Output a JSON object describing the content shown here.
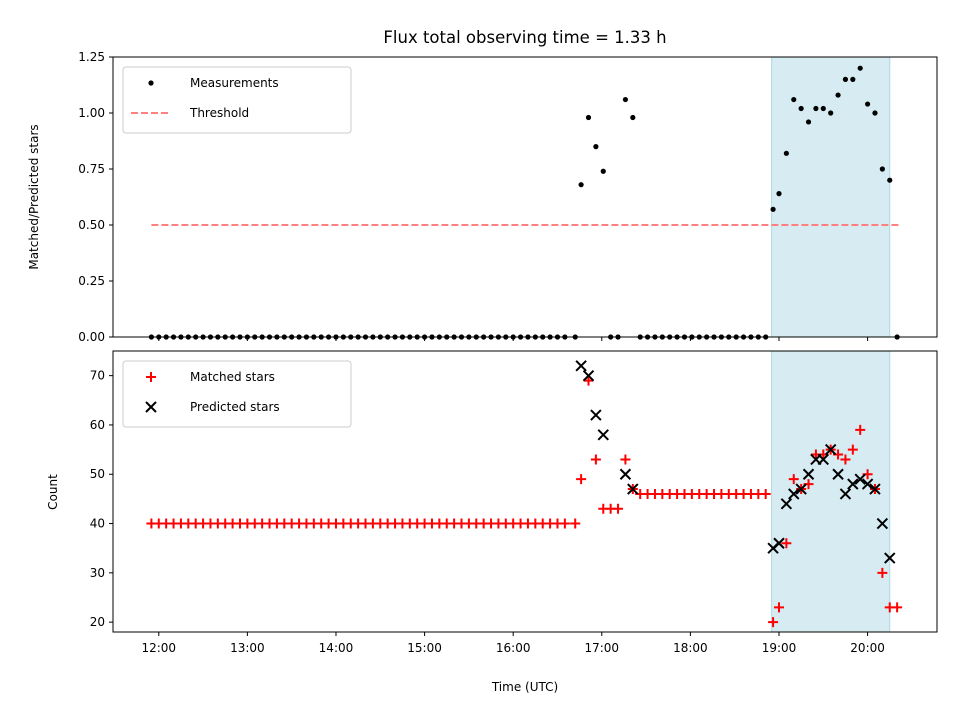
{
  "chart_data": [
    {
      "type": "scatter",
      "title": "Flux total observing time = 1.33 h",
      "ylabel": "Matched/Predicted stars",
      "xlabel": "",
      "ylim": [
        0,
        1.25
      ],
      "yticks": [
        "0.00",
        "0.25",
        "0.50",
        "0.75",
        "1.00",
        "1.25"
      ],
      "grid": false,
      "legend": "top-left",
      "shaded_interval": [
        "18:55",
        "20:15"
      ],
      "series": [
        {
          "name": "Measurements",
          "marker": "dot",
          "color": "#000000",
          "points": [
            [
              "11:55",
              0
            ],
            [
              "12:00",
              0
            ],
            [
              "12:05",
              0
            ],
            [
              "12:10",
              0
            ],
            [
              "12:15",
              0
            ],
            [
              "12:20",
              0
            ],
            [
              "12:25",
              0
            ],
            [
              "12:30",
              0
            ],
            [
              "12:35",
              0
            ],
            [
              "12:40",
              0
            ],
            [
              "12:45",
              0
            ],
            [
              "12:50",
              0
            ],
            [
              "12:55",
              0
            ],
            [
              "13:00",
              0
            ],
            [
              "13:05",
              0
            ],
            [
              "13:10",
              0
            ],
            [
              "13:15",
              0
            ],
            [
              "13:20",
              0
            ],
            [
              "13:25",
              0
            ],
            [
              "13:30",
              0
            ],
            [
              "13:35",
              0
            ],
            [
              "13:40",
              0
            ],
            [
              "13:45",
              0
            ],
            [
              "13:50",
              0
            ],
            [
              "13:55",
              0
            ],
            [
              "14:00",
              0
            ],
            [
              "14:05",
              0
            ],
            [
              "14:10",
              0
            ],
            [
              "14:15",
              0
            ],
            [
              "14:20",
              0
            ],
            [
              "14:25",
              0
            ],
            [
              "14:30",
              0
            ],
            [
              "14:35",
              0
            ],
            [
              "14:40",
              0
            ],
            [
              "14:45",
              0
            ],
            [
              "14:50",
              0
            ],
            [
              "14:55",
              0
            ],
            [
              "15:00",
              0
            ],
            [
              "15:05",
              0
            ],
            [
              "15:10",
              0
            ],
            [
              "15:15",
              0
            ],
            [
              "15:20",
              0
            ],
            [
              "15:25",
              0
            ],
            [
              "15:30",
              0
            ],
            [
              "15:35",
              0
            ],
            [
              "15:40",
              0
            ],
            [
              "15:45",
              0
            ],
            [
              "15:50",
              0
            ],
            [
              "15:55",
              0
            ],
            [
              "16:00",
              0
            ],
            [
              "16:05",
              0
            ],
            [
              "16:10",
              0
            ],
            [
              "16:15",
              0
            ],
            [
              "16:20",
              0
            ],
            [
              "16:25",
              0
            ],
            [
              "16:30",
              0
            ],
            [
              "16:35",
              0
            ],
            [
              "16:42",
              0
            ],
            [
              "16:46",
              0.68
            ],
            [
              "16:51",
              0.98
            ],
            [
              "16:56",
              0.85
            ],
            [
              "17:01",
              0.74
            ],
            [
              "17:06",
              0
            ],
            [
              "17:11",
              0
            ],
            [
              "17:16",
              1.06
            ],
            [
              "17:21",
              0.98
            ],
            [
              "17:26",
              0
            ],
            [
              "17:31",
              0
            ],
            [
              "17:36",
              0
            ],
            [
              "17:41",
              0
            ],
            [
              "17:46",
              0
            ],
            [
              "17:51",
              0
            ],
            [
              "17:56",
              0
            ],
            [
              "18:01",
              0
            ],
            [
              "18:06",
              0
            ],
            [
              "18:11",
              0
            ],
            [
              "18:16",
              0
            ],
            [
              "18:21",
              0
            ],
            [
              "18:26",
              0
            ],
            [
              "18:31",
              0
            ],
            [
              "18:36",
              0
            ],
            [
              "18:41",
              0
            ],
            [
              "18:46",
              0
            ],
            [
              "18:51",
              0
            ],
            [
              "18:56",
              0.57
            ],
            [
              "19:00",
              0.64
            ],
            [
              "19:05",
              0.82
            ],
            [
              "19:10",
              1.06
            ],
            [
              "19:15",
              1.02
            ],
            [
              "19:20",
              0.96
            ],
            [
              "19:25",
              1.02
            ],
            [
              "19:30",
              1.02
            ],
            [
              "19:35",
              1.0
            ],
            [
              "19:40",
              1.08
            ],
            [
              "19:45",
              1.15
            ],
            [
              "19:50",
              1.15
            ],
            [
              "19:55",
              1.2
            ],
            [
              "20:00",
              1.04
            ],
            [
              "20:05",
              1.0
            ],
            [
              "20:10",
              0.75
            ],
            [
              "20:15",
              0.7
            ],
            [
              "20:20",
              0
            ]
          ]
        },
        {
          "name": "Threshold",
          "marker": "dashed-line",
          "color": "#ff8080",
          "points": [
            [
              "11:55",
              0.5
            ],
            [
              "20:22",
              0.5
            ]
          ]
        }
      ]
    },
    {
      "type": "scatter",
      "title": "",
      "ylabel": "Count",
      "xlabel": "Time (UTC)",
      "ylim": [
        18,
        75
      ],
      "yticks": [
        "20",
        "30",
        "40",
        "50",
        "60",
        "70"
      ],
      "xticks": [
        "12:00",
        "13:00",
        "14:00",
        "15:00",
        "16:00",
        "17:00",
        "18:00",
        "19:00",
        "20:00"
      ],
      "grid": false,
      "legend": "top-left",
      "shaded_interval": [
        "18:55",
        "20:15"
      ],
      "series": [
        {
          "name": "Matched stars",
          "marker": "plus",
          "color": "#ff0000",
          "points": [
            [
              "11:55",
              40
            ],
            [
              "12:00",
              40
            ],
            [
              "12:05",
              40
            ],
            [
              "12:10",
              40
            ],
            [
              "12:15",
              40
            ],
            [
              "12:20",
              40
            ],
            [
              "12:25",
              40
            ],
            [
              "12:30",
              40
            ],
            [
              "12:35",
              40
            ],
            [
              "12:40",
              40
            ],
            [
              "12:45",
              40
            ],
            [
              "12:50",
              40
            ],
            [
              "12:55",
              40
            ],
            [
              "13:00",
              40
            ],
            [
              "13:05",
              40
            ],
            [
              "13:10",
              40
            ],
            [
              "13:15",
              40
            ],
            [
              "13:20",
              40
            ],
            [
              "13:25",
              40
            ],
            [
              "13:30",
              40
            ],
            [
              "13:35",
              40
            ],
            [
              "13:40",
              40
            ],
            [
              "13:45",
              40
            ],
            [
              "13:50",
              40
            ],
            [
              "13:55",
              40
            ],
            [
              "14:00",
              40
            ],
            [
              "14:05",
              40
            ],
            [
              "14:10",
              40
            ],
            [
              "14:15",
              40
            ],
            [
              "14:20",
              40
            ],
            [
              "14:25",
              40
            ],
            [
              "14:30",
              40
            ],
            [
              "14:35",
              40
            ],
            [
              "14:40",
              40
            ],
            [
              "14:45",
              40
            ],
            [
              "14:50",
              40
            ],
            [
              "14:55",
              40
            ],
            [
              "15:00",
              40
            ],
            [
              "15:05",
              40
            ],
            [
              "15:10",
              40
            ],
            [
              "15:15",
              40
            ],
            [
              "15:20",
              40
            ],
            [
              "15:25",
              40
            ],
            [
              "15:30",
              40
            ],
            [
              "15:35",
              40
            ],
            [
              "15:40",
              40
            ],
            [
              "15:45",
              40
            ],
            [
              "15:50",
              40
            ],
            [
              "15:55",
              40
            ],
            [
              "16:00",
              40
            ],
            [
              "16:05",
              40
            ],
            [
              "16:10",
              40
            ],
            [
              "16:15",
              40
            ],
            [
              "16:20",
              40
            ],
            [
              "16:25",
              40
            ],
            [
              "16:30",
              40
            ],
            [
              "16:35",
              40
            ],
            [
              "16:42",
              40
            ],
            [
              "16:46",
              49
            ],
            [
              "16:51",
              69
            ],
            [
              "16:56",
              53
            ],
            [
              "17:01",
              43
            ],
            [
              "17:06",
              43
            ],
            [
              "17:11",
              43
            ],
            [
              "17:16",
              53
            ],
            [
              "17:21",
              47
            ],
            [
              "17:26",
              46
            ],
            [
              "17:31",
              46
            ],
            [
              "17:36",
              46
            ],
            [
              "17:41",
              46
            ],
            [
              "17:46",
              46
            ],
            [
              "17:51",
              46
            ],
            [
              "17:56",
              46
            ],
            [
              "18:01",
              46
            ],
            [
              "18:06",
              46
            ],
            [
              "18:11",
              46
            ],
            [
              "18:16",
              46
            ],
            [
              "18:21",
              46
            ],
            [
              "18:26",
              46
            ],
            [
              "18:31",
              46
            ],
            [
              "18:36",
              46
            ],
            [
              "18:41",
              46
            ],
            [
              "18:46",
              46
            ],
            [
              "18:51",
              46
            ],
            [
              "18:56",
              20
            ],
            [
              "19:00",
              23
            ],
            [
              "19:05",
              36
            ],
            [
              "19:10",
              49
            ],
            [
              "19:15",
              47
            ],
            [
              "19:20",
              48
            ],
            [
              "19:25",
              54
            ],
            [
              "19:30",
              54
            ],
            [
              "19:35",
              55
            ],
            [
              "19:40",
              54
            ],
            [
              "19:45",
              53
            ],
            [
              "19:50",
              55
            ],
            [
              "19:55",
              59
            ],
            [
              "20:00",
              50
            ],
            [
              "20:05",
              47
            ],
            [
              "20:10",
              30
            ],
            [
              "20:15",
              23
            ],
            [
              "20:20",
              23
            ]
          ]
        },
        {
          "name": "Predicted stars",
          "marker": "x",
          "color": "#000000",
          "points": [
            [
              "16:46",
              72
            ],
            [
              "16:51",
              70
            ],
            [
              "16:56",
              62
            ],
            [
              "17:01",
              58
            ],
            [
              "17:16",
              50
            ],
            [
              "17:21",
              47
            ],
            [
              "18:56",
              35
            ],
            [
              "19:00",
              36
            ],
            [
              "19:05",
              44
            ],
            [
              "19:10",
              46
            ],
            [
              "19:15",
              47
            ],
            [
              "19:20",
              50
            ],
            [
              "19:25",
              53
            ],
            [
              "19:30",
              53
            ],
            [
              "19:35",
              55
            ],
            [
              "19:40",
              50
            ],
            [
              "19:45",
              46
            ],
            [
              "19:50",
              48
            ],
            [
              "19:55",
              49
            ],
            [
              "20:00",
              48
            ],
            [
              "20:05",
              47
            ],
            [
              "20:10",
              40
            ],
            [
              "20:15",
              33
            ]
          ]
        }
      ]
    }
  ]
}
